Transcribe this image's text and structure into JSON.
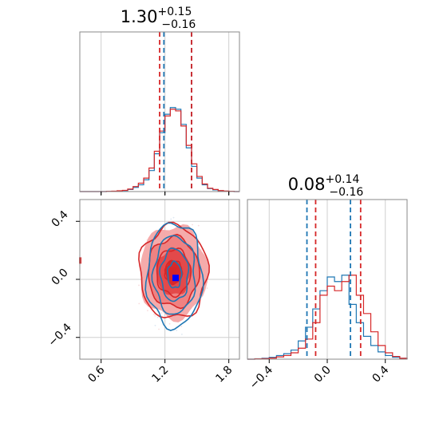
{
  "chart_data": [
    {
      "panel": "marginal-1",
      "type": "histogram",
      "title": {
        "value": "1.30",
        "sup": "+0.15",
        "sub": "−0.16"
      },
      "xlim": [
        0.4,
        1.9
      ],
      "grid": true,
      "series": [
        {
          "color": "#1f77b4",
          "edges": [
            0.4,
            0.45,
            0.5,
            0.55,
            0.6,
            0.65,
            0.7,
            0.75,
            0.8,
            0.85,
            0.9,
            0.95,
            1.0,
            1.05,
            1.1,
            1.15,
            1.2,
            1.25,
            1.3,
            1.35,
            1.4,
            1.45,
            1.5,
            1.55,
            1.6,
            1.65,
            1.7,
            1.75,
            1.8,
            1.85,
            1.9
          ],
          "counts": [
            0,
            0,
            0,
            0,
            0,
            0.2,
            0.4,
            0.9,
            1.2,
            2.5,
            5,
            8,
            14,
            25,
            45,
            70,
            92,
            100,
            98,
            80,
            52,
            30,
            16,
            8,
            3.5,
            2,
            1,
            0.5,
            0.2,
            0
          ]
        },
        {
          "color": "#d62728",
          "edges": [
            0.4,
            0.45,
            0.5,
            0.55,
            0.6,
            0.65,
            0.7,
            0.75,
            0.8,
            0.85,
            0.9,
            0.95,
            1.0,
            1.05,
            1.1,
            1.15,
            1.2,
            1.25,
            1.3,
            1.35,
            1.4,
            1.45,
            1.5,
            1.55,
            1.6,
            1.65,
            1.7,
            1.75,
            1.8,
            1.85,
            1.9
          ],
          "counts": [
            0,
            0,
            0,
            0,
            0,
            0.3,
            0.5,
            1,
            1.5,
            3,
            6,
            10,
            16,
            28,
            48,
            72,
            90,
            98,
            96,
            78,
            55,
            33,
            18,
            9,
            4,
            2.5,
            1.2,
            0.6,
            0.3,
            0
          ]
        }
      ],
      "quantiles": [
        {
          "color": "#1f77b4",
          "values": [
            1.19,
            1.45
          ]
        },
        {
          "color": "#d62728",
          "values": [
            1.15,
            1.45
          ]
        }
      ],
      "xticks": [],
      "yticks": []
    },
    {
      "panel": "marginal-2",
      "type": "histogram",
      "title": {
        "value": "0.08",
        "sup": "+0.14",
        "sub": "−0.16"
      },
      "xlim": [
        -0.55,
        0.55
      ],
      "grid": true,
      "series": [
        {
          "color": "#1f77b4",
          "edges": [
            -0.55,
            -0.5,
            -0.45,
            -0.4,
            -0.35,
            -0.3,
            -0.25,
            -0.2,
            -0.15,
            -0.1,
            -0.05,
            0.0,
            0.05,
            0.1,
            0.15,
            0.2,
            0.25,
            0.3,
            0.35,
            0.4,
            0.45,
            0.5,
            0.55
          ],
          "counts": [
            0,
            0.5,
            1,
            2,
            4,
            6,
            10,
            20,
            35,
            55,
            75,
            90,
            85,
            92,
            60,
            40,
            25,
            15,
            8,
            4,
            2,
            1
          ]
        },
        {
          "color": "#d62728",
          "edges": [
            -0.55,
            -0.5,
            -0.45,
            -0.4,
            -0.35,
            -0.3,
            -0.25,
            -0.2,
            -0.15,
            -0.1,
            -0.05,
            0.0,
            0.05,
            0.1,
            0.15,
            0.2,
            0.25,
            0.3,
            0.35,
            0.4,
            0.45,
            0.5,
            0.55
          ],
          "counts": [
            0,
            0.3,
            0.6,
            1.2,
            2.5,
            4,
            7,
            12,
            22,
            40,
            70,
            80,
            75,
            85,
            92,
            70,
            50,
            30,
            15,
            7,
            3,
            1
          ]
        }
      ],
      "quantiles": [
        {
          "color": "#1f77b4",
          "values": [
            -0.14,
            0.16
          ]
        },
        {
          "color": "#d62728",
          "values": [
            -0.08,
            0.23
          ]
        }
      ],
      "xticks": [
        "−0.4",
        "0.0",
        "0.4"
      ],
      "xtick_values": [
        -0.4,
        0.0,
        0.4
      ],
      "yticks": []
    },
    {
      "panel": "joint",
      "type": "contour",
      "xlim": [
        0.4,
        1.9
      ],
      "ylim": [
        -0.55,
        0.55
      ],
      "grid": true,
      "xticks": [
        "0.6",
        "1.2",
        "1.8"
      ],
      "xtick_values": [
        0.6,
        1.2,
        1.8
      ],
      "yticks": [
        "0.4",
        "0.0",
        "−0.4"
      ],
      "ytick_values": [
        0.4,
        0.0,
        -0.4
      ],
      "series": [
        {
          "color": "#d62728",
          "center": [
            1.28,
            0.05
          ],
          "sigma": [
            0.16,
            0.16
          ],
          "levels": [
            0.5,
            1.0,
            1.5,
            2.0
          ]
        },
        {
          "color": "#1f77b4",
          "center": [
            1.29,
            0.03
          ],
          "sigma": [
            0.13,
            0.18
          ],
          "levels": [
            0.5,
            1.0,
            1.5,
            2.0
          ]
        }
      ],
      "markers": [
        {
          "color": "#d62728",
          "x": 1.28,
          "y": 0.06
        },
        {
          "color": "#0000ff",
          "x": 1.3,
          "y": 0.01
        }
      ]
    }
  ]
}
